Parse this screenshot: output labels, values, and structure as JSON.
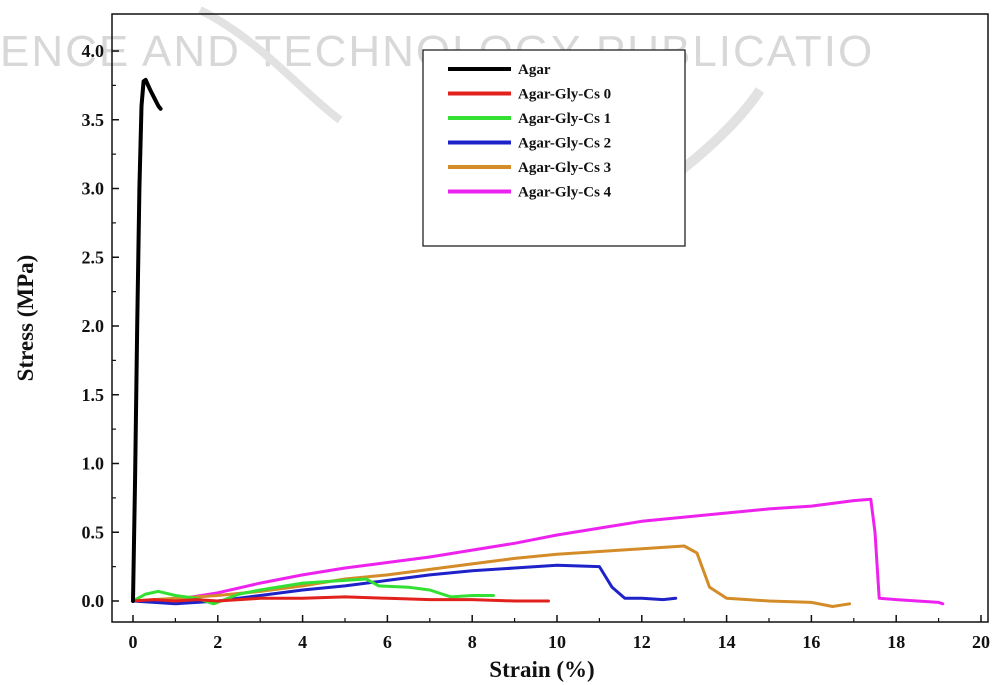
{
  "watermark": "ENCE AND TECHNOLOGY PUBLICATIO",
  "chart_data": {
    "type": "line",
    "xlabel": "Strain (%)",
    "ylabel": "Stress (MPa)",
    "xlim": [
      0,
      20
    ],
    "ylim": [
      -0.1,
      4.3
    ],
    "xticks": [
      0,
      2,
      4,
      6,
      8,
      10,
      12,
      14,
      16,
      18,
      20
    ],
    "yticks": [
      0.0,
      0.5,
      1.0,
      1.5,
      2.0,
      2.5,
      3.0,
      3.5,
      4.0
    ],
    "xtick_labels": [
      "0",
      "2",
      "4",
      "6",
      "8",
      "10",
      "12",
      "14",
      "16",
      "18",
      "20"
    ],
    "ytick_labels": [
      "0.0",
      "0.5",
      "1.0",
      "1.5",
      "2.0",
      "2.5",
      "3.0",
      "3.5",
      "4.0"
    ],
    "grid": false,
    "legend_position": "top-center",
    "series": [
      {
        "name": "Agar",
        "color": "#000000",
        "x": [
          0.0,
          0.05,
          0.1,
          0.15,
          0.2,
          0.25,
          0.3,
          0.4,
          0.5,
          0.6,
          0.65
        ],
        "y": [
          0.0,
          0.9,
          2.0,
          3.0,
          3.6,
          3.78,
          3.79,
          3.72,
          3.66,
          3.6,
          3.58
        ]
      },
      {
        "name": "Agar-Gly-Cs 0",
        "color": "#e2201c",
        "x": [
          0,
          0.5,
          1,
          1.5,
          2,
          3,
          4,
          5,
          6,
          7,
          8,
          9,
          9.8
        ],
        "y": [
          0,
          0.01,
          0.0,
          0.01,
          0.0,
          0.02,
          0.02,
          0.03,
          0.02,
          0.01,
          0.01,
          0.0,
          0.0
        ]
      },
      {
        "name": "Agar-Gly-Cs 1",
        "color": "#33e033",
        "x": [
          0,
          0.3,
          0.6,
          1,
          1.5,
          1.9,
          2.5,
          3,
          4,
          5,
          5.5,
          5.8,
          6.5,
          7,
          7.5,
          8,
          8.5
        ],
        "y": [
          0,
          0.05,
          0.07,
          0.04,
          0.02,
          -0.02,
          0.05,
          0.08,
          0.13,
          0.15,
          0.16,
          0.11,
          0.1,
          0.08,
          0.03,
          0.04,
          0.04
        ]
      },
      {
        "name": "Agar-Gly-Cs 2",
        "color": "#1e22c8",
        "x": [
          0,
          1,
          2,
          3,
          4,
          5,
          6,
          7,
          8,
          9,
          10,
          11,
          11.3,
          11.6,
          12,
          12.5,
          12.8
        ],
        "y": [
          0,
          -0.02,
          0.0,
          0.04,
          0.08,
          0.11,
          0.15,
          0.19,
          0.22,
          0.24,
          0.26,
          0.25,
          0.1,
          0.02,
          0.02,
          0.01,
          0.02
        ]
      },
      {
        "name": "Agar-Gly-Cs 3",
        "color": "#d48c28",
        "x": [
          0,
          1,
          2,
          3,
          4,
          5,
          6,
          7,
          8,
          9,
          10,
          11,
          12,
          13,
          13.3,
          13.6,
          14,
          15,
          16,
          16.5,
          16.9
        ],
        "y": [
          0,
          0.02,
          0.04,
          0.07,
          0.11,
          0.16,
          0.19,
          0.23,
          0.27,
          0.31,
          0.34,
          0.36,
          0.38,
          0.4,
          0.35,
          0.1,
          0.02,
          0.0,
          -0.01,
          -0.04,
          -0.02
        ]
      },
      {
        "name": "Agar-Gly-Cs 4",
        "color": "#ee22ee",
        "x": [
          0,
          1,
          2,
          3,
          4,
          5,
          6,
          7,
          8,
          9,
          10,
          11,
          12,
          13,
          14,
          15,
          16,
          17,
          17.4,
          17.5,
          17.6,
          18,
          18.5,
          19,
          19.1
        ],
        "y": [
          0,
          0.01,
          0.06,
          0.13,
          0.19,
          0.24,
          0.28,
          0.32,
          0.37,
          0.42,
          0.48,
          0.53,
          0.58,
          0.61,
          0.64,
          0.67,
          0.69,
          0.73,
          0.74,
          0.5,
          0.02,
          0.01,
          0.0,
          -0.01,
          -0.02
        ]
      }
    ]
  }
}
